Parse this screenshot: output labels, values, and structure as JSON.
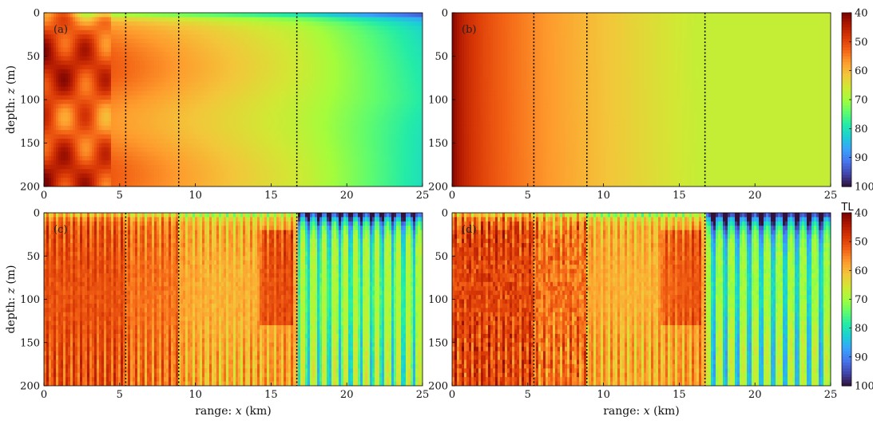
{
  "colors": {
    "colormap": [
      "#30123b",
      "#4145ab",
      "#4675ed",
      "#39a2fc",
      "#1bcfd4",
      "#24eca6",
      "#61fc6c",
      "#a4fc3b",
      "#d1e834",
      "#f3c63a",
      "#fe9b2d",
      "#f36315",
      "#d93806",
      "#b11901",
      "#7a0402"
    ],
    "colormap_direction": "low TL = dark red, high TL = dark blue",
    "reference_lines": "#000000"
  },
  "chart_data": [
    {
      "type": "heatmap",
      "panel": "(a)",
      "title": "",
      "xlabel": "",
      "ylabel": "depth: z (m)",
      "xlim": [
        0,
        25
      ],
      "ylim": [
        200,
        0
      ],
      "xticks": [
        0,
        5,
        10,
        15,
        20,
        25
      ],
      "yticks": [
        0,
        50,
        100,
        150,
        200
      ],
      "vertical_lines_x": [
        5.4,
        8.9,
        16.7
      ],
      "description": "smooth field; TL about 45-55 near source with modal interference blobs, rising to about 70-75 far range, higher near surface"
    },
    {
      "type": "heatmap",
      "panel": "(b)",
      "title": "",
      "xlabel": "",
      "ylabel": "",
      "xlim": [
        0,
        25
      ],
      "ylim": [
        200,
        0
      ],
      "xticks": [
        0,
        5,
        10,
        15,
        20,
        25
      ],
      "yticks": [
        0,
        50,
        100,
        150,
        200
      ],
      "vertical_lines_x": [
        5.4,
        8.9,
        16.7
      ],
      "description": "range-only field; TL about 40 at source rising to about 65-68 at 25 km"
    },
    {
      "type": "heatmap",
      "panel": "(c)",
      "title": "",
      "xlabel": "range: x (km)",
      "ylabel": "depth: z (m)",
      "xlim": [
        0,
        25
      ],
      "ylim": [
        200,
        0
      ],
      "xticks": [
        0,
        5,
        10,
        15,
        20,
        25
      ],
      "yticks": [
        0,
        50,
        100,
        150,
        200
      ],
      "vertical_lines_x": [
        5.4,
        8.9,
        16.7
      ],
      "description": "striped interference pattern; TL about 50 before 17 km, about 65-85 after, deep shadow near surface"
    },
    {
      "type": "heatmap",
      "panel": "(d)",
      "title": "",
      "xlabel": "range: x (km)",
      "ylabel": "",
      "xlim": [
        0,
        25
      ],
      "ylim": [
        200,
        0
      ],
      "xticks": [
        0,
        5,
        10,
        15,
        20,
        25
      ],
      "yticks": [
        0,
        50,
        100,
        150,
        200
      ],
      "vertical_lines_x": [
        5.4,
        8.9,
        16.7
      ],
      "description": "striped interference pattern similar to (c) with stronger speckle near source"
    }
  ],
  "colorbars": [
    {
      "title": "",
      "ticks": [
        40,
        50,
        60,
        70,
        80,
        90,
        100
      ],
      "range": [
        40,
        100
      ]
    },
    {
      "title": "TL",
      "ticks": [
        40,
        50,
        60,
        70,
        80,
        90,
        100
      ],
      "range": [
        40,
        100
      ]
    }
  ],
  "text": {
    "ylabel_italic_var": "z",
    "xlabel_italic_var": "x"
  }
}
